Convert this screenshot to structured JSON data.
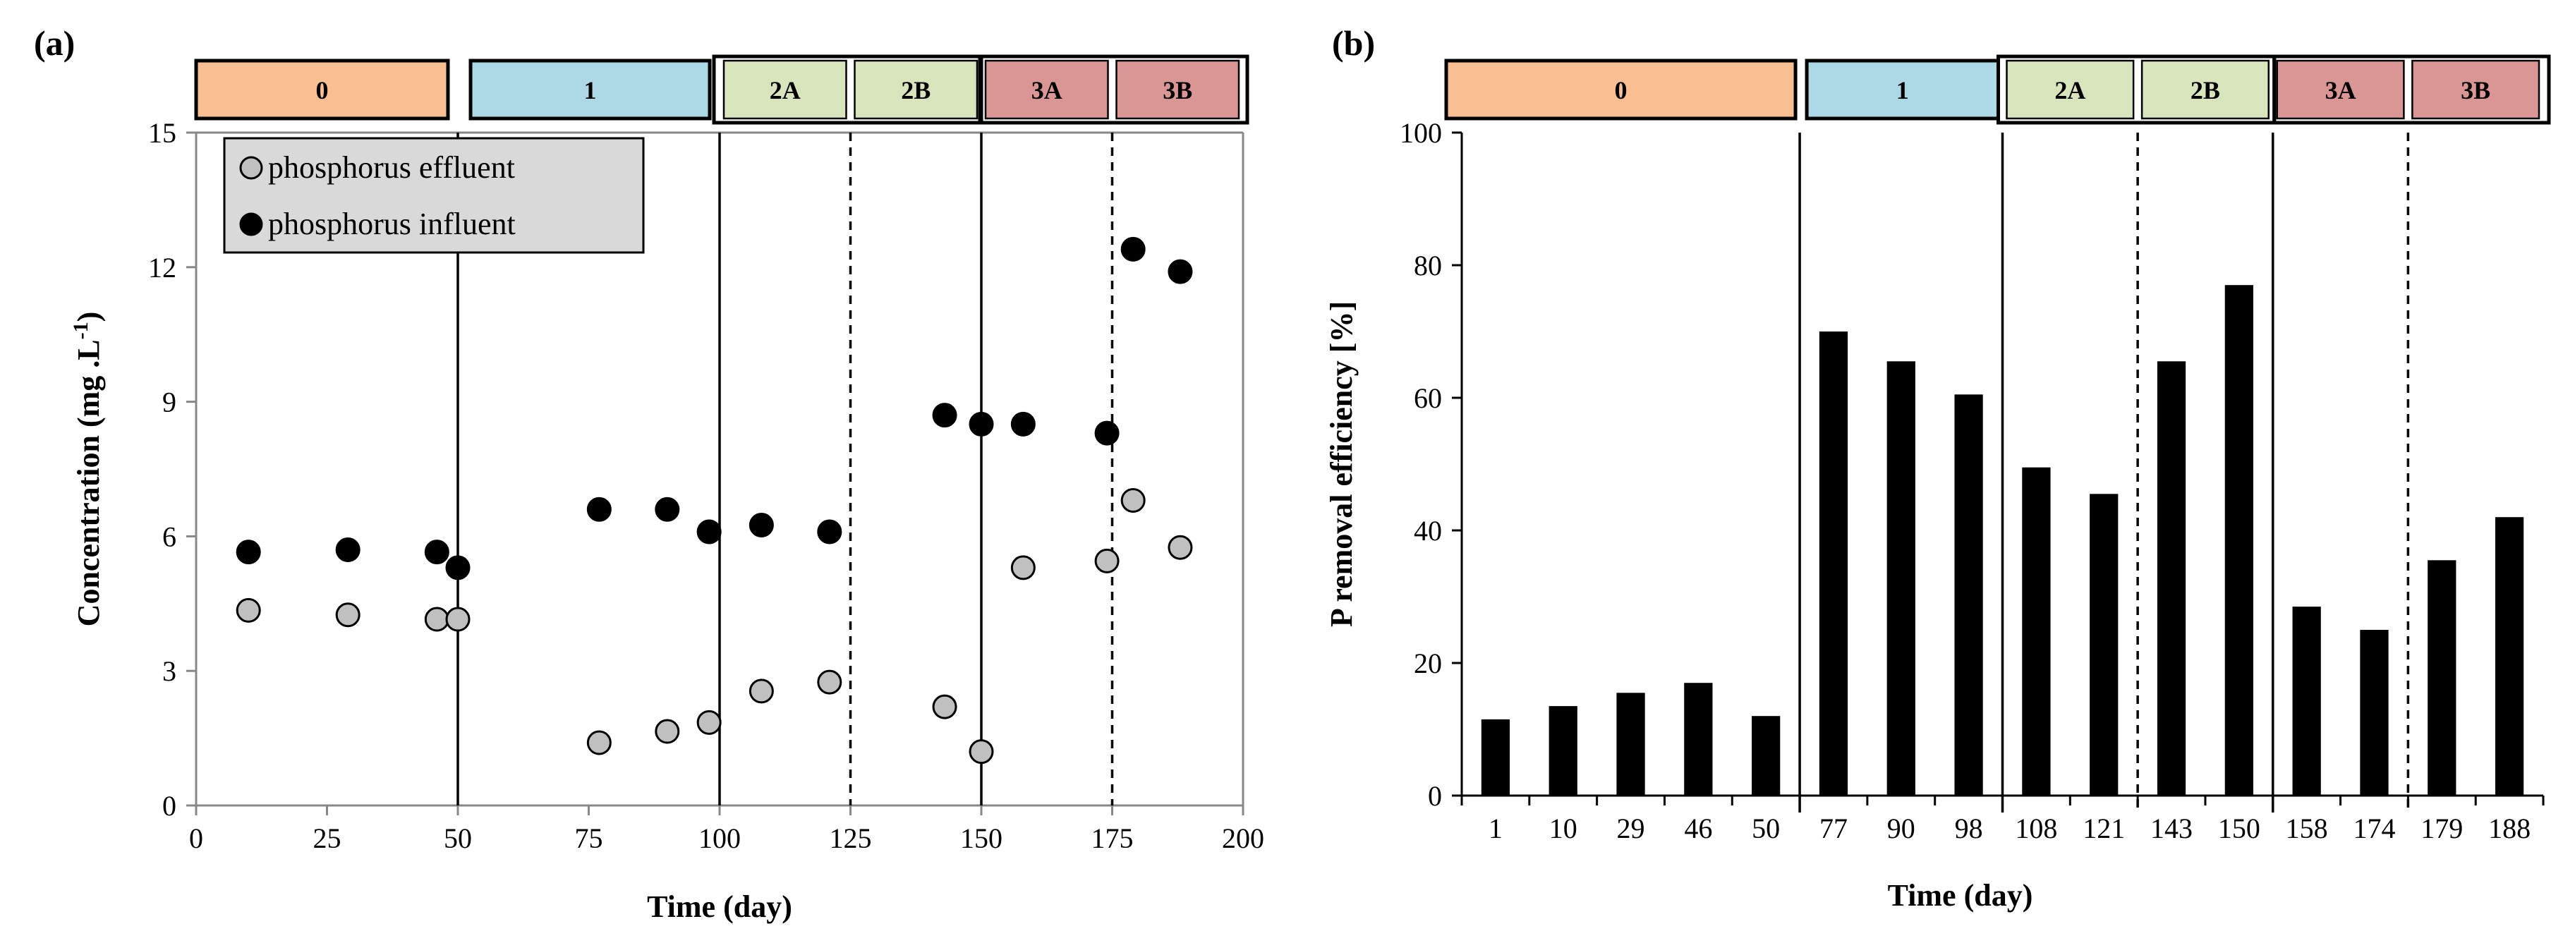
{
  "chart_data": [
    {
      "panel_label": "(a)",
      "type": "scatter",
      "xlabel": "Time (day)",
      "ylabel": "Concentration  (mg .L",
      "ylabel_sup": "-1",
      "ylabel_close": ")",
      "xlim": [
        0,
        200
      ],
      "ylim": [
        0,
        15
      ],
      "xticks": [
        0,
        25,
        50,
        75,
        100,
        125,
        150,
        175,
        200
      ],
      "yticks": [
        0,
        3,
        6,
        9,
        12,
        15
      ],
      "legend_position": "top-left",
      "series": [
        {
          "name": "phosphorus effluent",
          "color": "#c0c0c0",
          "x": [
            10,
            29,
            46,
            50,
            77,
            90,
            98,
            108,
            121,
            143,
            150,
            158,
            174,
            179,
            188
          ],
          "y": [
            4.35,
            4.25,
            4.15,
            4.15,
            1.4,
            1.65,
            1.85,
            2.55,
            2.75,
            2.2,
            1.2,
            5.3,
            5.45,
            6.8,
            5.75
          ]
        },
        {
          "name": "phosphorus influent",
          "color": "#000000",
          "x": [
            10,
            29,
            46,
            50,
            77,
            90,
            98,
            108,
            121,
            143,
            150,
            158,
            174,
            179,
            188
          ],
          "y": [
            5.65,
            5.7,
            5.65,
            5.3,
            6.6,
            6.6,
            6.1,
            6.25,
            6.1,
            8.7,
            8.5,
            8.5,
            8.3,
            12.4,
            11.9
          ]
        }
      ],
      "phase_lines": [
        {
          "x": 50,
          "style": "solid"
        },
        {
          "x": 100,
          "style": "solid"
        },
        {
          "x": 125,
          "style": "dashed"
        },
        {
          "x": 150,
          "style": "solid"
        },
        {
          "x": 175,
          "style": "dashed"
        }
      ],
      "phase_boxes": [
        {
          "label": "0",
          "color": "#f9be92",
          "x": [
            0,
            50
          ]
        },
        {
          "label": "1",
          "color": "#add8e6",
          "x": [
            50,
            100
          ]
        },
        {
          "label": "2A",
          "color": "#d8e4bc",
          "x": [
            100,
            125
          ],
          "group": "2"
        },
        {
          "label": "2B",
          "color": "#d8e4bc",
          "x": [
            125,
            150
          ],
          "group": "2"
        },
        {
          "label": "3A",
          "color": "#d99694",
          "x": [
            150,
            175
          ],
          "group": "3"
        },
        {
          "label": "3B",
          "color": "#d99694",
          "x": [
            175,
            200
          ],
          "group": "3"
        }
      ]
    },
    {
      "panel_label": "(b)",
      "type": "bar",
      "xlabel": "Time (day)",
      "ylabel": "P removal  efficiency  [%]",
      "ylim": [
        0,
        100
      ],
      "yticks": [
        0,
        20,
        40,
        60,
        80,
        100
      ],
      "bar_color": "#000000",
      "categories": [
        "1",
        "10",
        "29",
        "46",
        "50",
        "77",
        "90",
        "98",
        "108",
        "121",
        "143",
        "150",
        "158",
        "174",
        "179",
        "188"
      ],
      "values": [
        11.5,
        13.5,
        15.5,
        17,
        12,
        70,
        65.5,
        60.5,
        49.5,
        45.5,
        65.5,
        77,
        28.5,
        25,
        35.5,
        42
      ],
      "phase_lines": [
        {
          "after_index": 4,
          "style": "solid"
        },
        {
          "after_index": 7,
          "style": "solid"
        },
        {
          "after_index": 9,
          "style": "dashed"
        },
        {
          "after_index": 11,
          "style": "solid"
        },
        {
          "after_index": 13,
          "style": "dashed"
        }
      ],
      "phase_boxes": [
        {
          "label": "0",
          "color": "#f9be92",
          "range": [
            0,
            5
          ]
        },
        {
          "label": "1",
          "color": "#add8e6",
          "range": [
            5,
            8
          ]
        },
        {
          "label": "2A",
          "color": "#d8e4bc",
          "range": [
            8,
            10
          ],
          "group": "2"
        },
        {
          "label": "2B",
          "color": "#d8e4bc",
          "range": [
            10,
            12
          ],
          "group": "2"
        },
        {
          "label": "3A",
          "color": "#d99694",
          "range": [
            12,
            14
          ],
          "group": "3"
        },
        {
          "label": "3B",
          "color": "#d99694",
          "range": [
            14,
            16
          ],
          "group": "3"
        }
      ]
    }
  ]
}
